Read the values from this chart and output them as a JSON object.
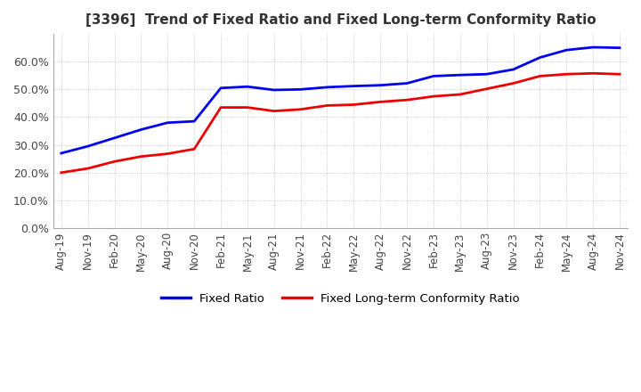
{
  "title": "[3396]  Trend of Fixed Ratio and Fixed Long-term Conformity Ratio",
  "title_fontsize": 11,
  "title_color": "#333333",
  "background_color": "#ffffff",
  "plot_background": "#ffffff",
  "grid_color": "#aaaaaa",
  "ylim": [
    0.0,
    0.7
  ],
  "yticks": [
    0.0,
    0.1,
    0.2,
    0.3,
    0.4,
    0.5,
    0.6
  ],
  "fixed_ratio_color": "#0000ee",
  "fixed_lt_color": "#ee0000",
  "fixed_ratio_label": "Fixed Ratio",
  "fixed_lt_label": "Fixed Long-term Conformity Ratio",
  "fixed_ratio": [
    0.27,
    0.295,
    0.325,
    0.355,
    0.38,
    0.385,
    0.505,
    0.51,
    0.498,
    0.5,
    0.508,
    0.512,
    0.515,
    0.522,
    0.548,
    0.552,
    0.555,
    0.572,
    0.615,
    0.642,
    0.652,
    0.65
  ],
  "fixed_lt": [
    0.2,
    0.215,
    0.24,
    0.258,
    0.268,
    0.285,
    0.435,
    0.435,
    0.422,
    0.428,
    0.442,
    0.445,
    0.455,
    0.462,
    0.475,
    0.482,
    0.502,
    0.522,
    0.548,
    0.555,
    0.558,
    0.555
  ],
  "xtick_labels": [
    "Aug-19",
    "Nov-19",
    "Feb-20",
    "May-20",
    "Aug-20",
    "Nov-20",
    "Feb-21",
    "May-21",
    "Aug-21",
    "Nov-21",
    "Feb-22",
    "May-22",
    "Aug-22",
    "Nov-22",
    "Feb-23",
    "May-23",
    "Aug-23",
    "Nov-23",
    "Feb-24",
    "May-24",
    "Aug-24",
    "Nov-24"
  ]
}
